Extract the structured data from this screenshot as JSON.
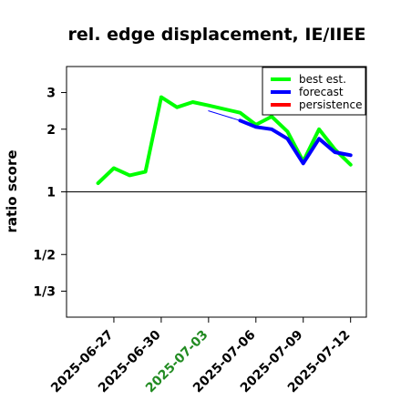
{
  "chart_data": {
    "type": "line",
    "title": "rel. edge displacement, IE/IIEE",
    "ylabel": "ratio score",
    "xlabel": "",
    "y_scale": "log",
    "y_ticks": [
      "3",
      "2",
      "1",
      "1/2",
      "1/3"
    ],
    "y_tick_values": [
      3,
      2,
      1,
      0.5,
      0.3333
    ],
    "ylim": [
      0.25,
      4.0
    ],
    "x_ticks": [
      "2025-06-27",
      "2025-06-30",
      "2025-07-03",
      "2025-07-06",
      "2025-07-09",
      "2025-07-12"
    ],
    "highlighted_x_tick": "2025-07-03",
    "highlight_color": "#228b22",
    "xlim": [
      "2025-06-24",
      "2025-07-13"
    ],
    "reference_line": 1,
    "legend": {
      "position": "top-right",
      "entries": [
        {
          "label": "best est.",
          "color": "#00ff00"
        },
        {
          "label": "forecast",
          "color": "#0000ff"
        },
        {
          "label": "persistence",
          "color": "#ff0000"
        }
      ]
    },
    "series": [
      {
        "name": "best est.",
        "color": "#00ff00",
        "style": "thick",
        "points": [
          {
            "x": "2025-06-26",
            "y": 1.1
          },
          {
            "x": "2025-06-27",
            "y": 1.3
          },
          {
            "x": "2025-06-28",
            "y": 1.2
          },
          {
            "x": "2025-06-29",
            "y": 1.25
          },
          {
            "x": "2025-06-30",
            "y": 2.85
          },
          {
            "x": "2025-07-01",
            "y": 2.55
          },
          {
            "x": "2025-07-02",
            "y": 2.7
          },
          {
            "x": "2025-07-03",
            "y": 2.6
          },
          {
            "x": "2025-07-05",
            "y": 2.4
          },
          {
            "x": "2025-07-06",
            "y": 2.1
          },
          {
            "x": "2025-07-07",
            "y": 2.3
          },
          {
            "x": "2025-07-08",
            "y": 1.95
          },
          {
            "x": "2025-07-09",
            "y": 1.4
          },
          {
            "x": "2025-07-10",
            "y": 2.0
          },
          {
            "x": "2025-07-11",
            "y": 1.6
          },
          {
            "x": "2025-07-12",
            "y": 1.35
          }
        ]
      },
      {
        "name": "best est. (thin)",
        "color": "#00ff00",
        "style": "thin",
        "points": [
          {
            "x": "2025-07-03",
            "y": 2.6
          },
          {
            "x": "2025-07-05",
            "y": 2.4
          }
        ]
      },
      {
        "name": "forecast",
        "color": "#0000ff",
        "style": "thick",
        "points": [
          {
            "x": "2025-07-05",
            "y": 2.2
          },
          {
            "x": "2025-07-06",
            "y": 2.05
          },
          {
            "x": "2025-07-07",
            "y": 2.0
          },
          {
            "x": "2025-07-08",
            "y": 1.8
          },
          {
            "x": "2025-07-09",
            "y": 1.37
          },
          {
            "x": "2025-07-10",
            "y": 1.8
          },
          {
            "x": "2025-07-11",
            "y": 1.55
          },
          {
            "x": "2025-07-12",
            "y": 1.5
          }
        ]
      },
      {
        "name": "forecast (thin)",
        "color": "#0000ff",
        "style": "thin",
        "points": [
          {
            "x": "2025-07-03",
            "y": 2.45
          },
          {
            "x": "2025-07-05",
            "y": 2.2
          }
        ]
      }
    ]
  }
}
